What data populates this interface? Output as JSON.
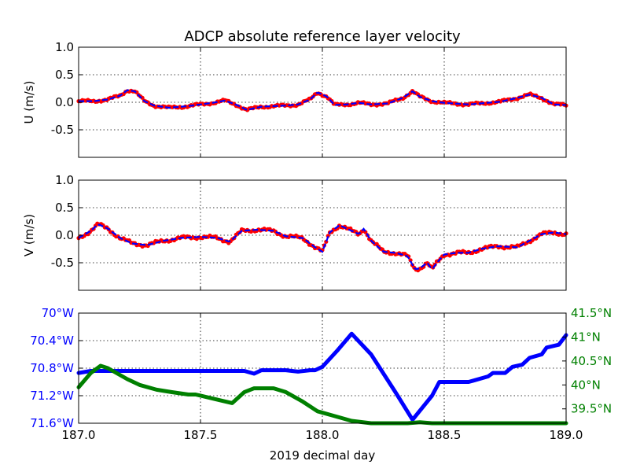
{
  "figure_title": "ADCP absolute reference layer velocity",
  "colors": {
    "obs": "#ff0000",
    "model": "#0000ff",
    "lon": "#0000ff",
    "lat": "#008000",
    "axis": "#000000"
  },
  "chart_data": [
    {
      "type": "scatter",
      "panel": "u",
      "ylabel": "U (m/s)",
      "xlim": [
        187.0,
        189.0
      ],
      "ylim": [
        -1.0,
        1.0
      ],
      "yticks": [
        "1.0",
        "0.5",
        "0.0",
        "-0.5"
      ],
      "ytick_values": [
        1.0,
        0.5,
        0.0,
        -0.5
      ],
      "grid": true,
      "x": [
        187.0,
        187.06,
        187.12,
        187.17,
        187.2,
        187.23,
        187.27,
        187.31,
        187.37,
        187.45,
        187.55,
        187.6,
        187.65,
        187.69,
        187.75,
        187.85,
        187.9,
        187.95,
        187.98,
        188.02,
        188.05,
        188.1,
        188.15,
        188.2,
        188.27,
        188.33,
        188.37,
        188.4,
        188.45,
        188.5,
        188.6,
        188.65,
        188.73,
        188.8,
        188.85,
        188.9,
        188.95,
        189.0
      ],
      "series": [
        {
          "values": [
            0.02,
            0.02,
            0.05,
            0.12,
            0.22,
            0.2,
            0.02,
            -0.06,
            -0.1,
            -0.07,
            -0.01,
            0.03,
            -0.05,
            -0.14,
            -0.08,
            -0.06,
            -0.04,
            0.05,
            0.18,
            0.1,
            -0.05,
            -0.04,
            -0.01,
            -0.04,
            -0.02,
            0.08,
            0.2,
            0.1,
            0.02,
            -0.01,
            -0.04,
            -0.02,
            0.01,
            0.08,
            0.14,
            0.08,
            -0.04,
            -0.05
          ]
        }
      ]
    },
    {
      "type": "scatter",
      "panel": "v",
      "ylabel": "V (m/s)",
      "xlim": [
        187.0,
        189.0
      ],
      "ylim": [
        -1.0,
        1.0
      ],
      "yticks": [
        "1.0",
        "0.5",
        "0.0",
        "-0.5"
      ],
      "ytick_values": [
        1.0,
        0.5,
        0.0,
        -0.5
      ],
      "grid": true,
      "x": [
        187.0,
        187.05,
        187.08,
        187.12,
        187.17,
        187.22,
        187.28,
        187.35,
        187.42,
        187.5,
        187.57,
        187.62,
        187.67,
        187.73,
        187.8,
        187.85,
        187.92,
        187.97,
        188.0,
        188.03,
        188.07,
        188.1,
        188.15,
        188.17,
        188.2,
        188.25,
        188.3,
        188.35,
        188.38,
        188.4,
        188.43,
        188.45,
        188.47,
        188.5,
        188.55,
        188.6,
        188.65,
        188.72,
        188.8,
        188.85,
        188.9,
        188.95,
        189.0
      ],
      "series": [
        {
          "values": [
            -0.05,
            0.08,
            0.2,
            0.12,
            -0.05,
            -0.15,
            -0.18,
            -0.1,
            -0.05,
            -0.03,
            -0.05,
            -0.12,
            0.08,
            0.1,
            0.08,
            -0.02,
            -0.05,
            -0.22,
            -0.3,
            0.05,
            0.18,
            0.12,
            0.02,
            0.12,
            -0.1,
            -0.3,
            -0.32,
            -0.38,
            -0.62,
            -0.6,
            -0.5,
            -0.62,
            -0.5,
            -0.35,
            -0.32,
            -0.32,
            -0.25,
            -0.2,
            -0.22,
            -0.1,
            0.02,
            0.05,
            0.02
          ]
        }
      ]
    },
    {
      "type": "line",
      "panel": "position",
      "xlabel": "2019 decimal day",
      "xlim": [
        187.0,
        189.0
      ],
      "xticks": [
        "187.0",
        "187.5",
        "188.0",
        "188.5",
        "189.0"
      ],
      "xtick_values": [
        187.0,
        187.5,
        188.0,
        188.5,
        189.0
      ],
      "grid": true,
      "left_axis": {
        "ylim": [
          -71.6,
          -70.0
        ],
        "yticks": [
          "70°W",
          "70.4°W",
          "70.8°W",
          "71.2°W",
          "71.6°W"
        ],
        "ytick_values": [
          -70.0,
          -70.4,
          -70.8,
          -71.2,
          -71.6
        ]
      },
      "right_axis": {
        "ylim": [
          39.2,
          41.5
        ],
        "yticks": [
          "41.5°N",
          "41°N",
          "40.5°N",
          "40°N",
          "39.5°N"
        ],
        "ytick_values": [
          41.5,
          41.0,
          40.5,
          40.0,
          39.5
        ]
      },
      "series": [
        {
          "axis": "left",
          "x": [
            187.0,
            187.05,
            187.35,
            187.48,
            187.6,
            187.68,
            187.72,
            187.75,
            187.85,
            187.9,
            187.95,
            187.97,
            188.0,
            188.06,
            188.12,
            188.2,
            188.3,
            188.37,
            188.45,
            188.48,
            188.6,
            188.62,
            188.68,
            188.7,
            188.75,
            188.78,
            188.82,
            188.85,
            188.9,
            188.92,
            188.97,
            189.0
          ],
          "values": [
            -70.87,
            -70.84,
            -70.84,
            -70.84,
            -70.84,
            -70.84,
            -70.88,
            -70.83,
            -70.83,
            -70.85,
            -70.83,
            -70.83,
            -70.78,
            -70.55,
            -70.3,
            -70.6,
            -71.15,
            -71.55,
            -71.2,
            -71.0,
            -71.0,
            -70.98,
            -70.92,
            -70.87,
            -70.87,
            -70.78,
            -70.75,
            -70.65,
            -70.6,
            -70.5,
            -70.46,
            -70.32
          ]
        },
        {
          "axis": "right",
          "x": [
            187.0,
            187.05,
            187.09,
            187.12,
            187.2,
            187.25,
            187.32,
            187.38,
            187.45,
            187.48,
            187.58,
            187.63,
            187.68,
            187.72,
            187.8,
            187.85,
            187.92,
            187.98,
            188.05,
            188.12,
            188.2,
            188.35,
            188.4,
            188.45,
            188.5,
            188.6,
            189.0
          ],
          "values": [
            39.95,
            40.25,
            40.4,
            40.35,
            40.12,
            40.0,
            39.9,
            39.85,
            39.8,
            39.8,
            39.68,
            39.62,
            39.85,
            39.93,
            39.93,
            39.85,
            39.65,
            39.45,
            39.35,
            39.25,
            39.2,
            39.2,
            39.22,
            39.2,
            39.2,
            39.2,
            39.2
          ]
        }
      ]
    }
  ]
}
